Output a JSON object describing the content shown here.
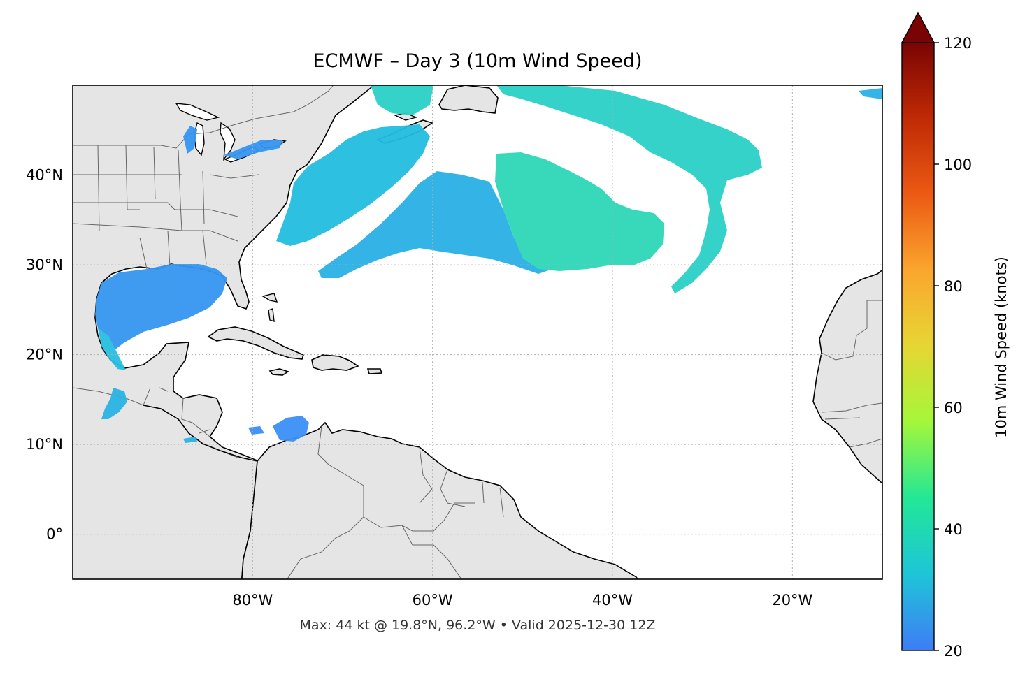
{
  "title": "ECMWF – Day 3 (10m Wind Speed)",
  "footer": "Max: 44 kt @ 19.8°N, 96.2°W • Valid 2025-12-30 12Z",
  "map": {
    "extent": {
      "lon": [
        -100,
        -10
      ],
      "lat": [
        -5,
        50
      ]
    },
    "lat_ticks": [
      {
        "value": 40,
        "label": "40°N"
      },
      {
        "value": 30,
        "label": "30°N"
      },
      {
        "value": 20,
        "label": "20°N"
      },
      {
        "value": 10,
        "label": "10°N"
      },
      {
        "value": 0,
        "label": "0°"
      }
    ],
    "lon_ticks": [
      {
        "value": -80,
        "label": "80°W"
      },
      {
        "value": -60,
        "label": "60°W"
      },
      {
        "value": -40,
        "label": "40°W"
      },
      {
        "value": -20,
        "label": "20°W"
      }
    ],
    "gridlines": true,
    "colors": {
      "land": "#e5e5e5",
      "coast": "#000000",
      "borders": "#666666",
      "grid": "#b0b0b0"
    }
  },
  "colorbar": {
    "label": "10m Wind Speed (knots)",
    "range": [
      20,
      120
    ],
    "extend": "max",
    "ticks": [
      {
        "value": 120,
        "label": "120"
      },
      {
        "value": 100,
        "label": "100"
      },
      {
        "value": 80,
        "label": "80"
      },
      {
        "value": 60,
        "label": "60"
      },
      {
        "value": 40,
        "label": "40"
      },
      {
        "value": 20,
        "label": "20"
      }
    ],
    "colors": [
      "#3e7cf5",
      "#1ec5d8",
      "#22e796",
      "#a3f73a",
      "#e6d634",
      "#fba62e",
      "#ec5a14",
      "#c02a05",
      "#7a0403"
    ]
  },
  "wind_fields": [
    {
      "name": "gulf-of-mexico",
      "color": "#3596f0"
    },
    {
      "name": "bay-of-campeche",
      "color": "#27bfe0"
    },
    {
      "name": "us-east-coast",
      "color": "#23bddf"
    },
    {
      "name": "atlantic-band",
      "color": "#2ab0e5"
    },
    {
      "name": "central-atlantic-low",
      "color": "#2ed8b8"
    },
    {
      "name": "north-atlantic",
      "color": "#2ad0c6"
    },
    {
      "name": "caribbean",
      "color": "#3a8ff5"
    },
    {
      "name": "pacific-coast",
      "color": "#2ab4e4"
    }
  ]
}
